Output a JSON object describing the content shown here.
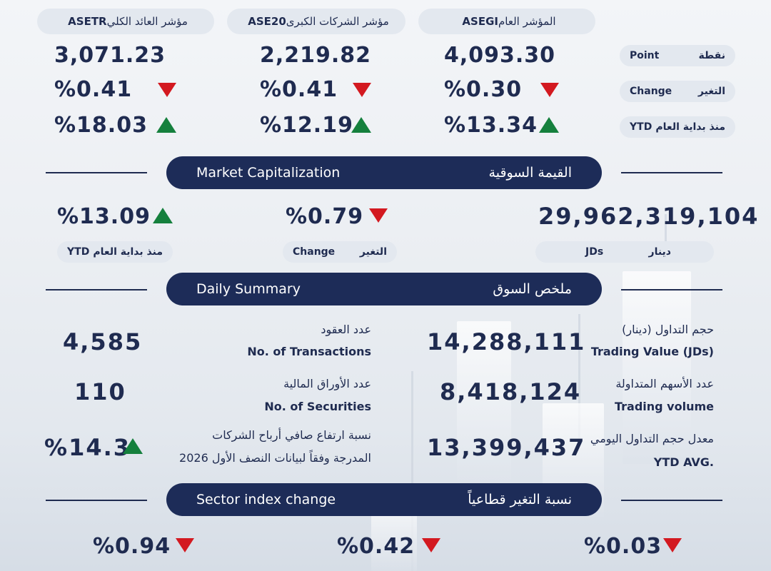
{
  "indices": [
    {
      "name_ar": "المؤشر العام",
      "code": "ASEGI",
      "point": "4,093.30",
      "change": "%0.30",
      "ytd": "%13.34"
    },
    {
      "name_ar": "مؤشر الشركات الكبرى",
      "code": "ASE20",
      "point": "2,219.82",
      "change": "%0.41",
      "ytd": "%12.19"
    },
    {
      "name_ar": "مؤشر العائد الكلي",
      "code": "ASETR",
      "point": "3,071.23",
      "change": "%0.41",
      "ytd": "%18.03"
    }
  ],
  "row_labels": [
    {
      "en": "Point",
      "ar": "نقطة"
    },
    {
      "en": "Change",
      "ar": "التغير"
    },
    {
      "en": "YTD",
      "ar": "منذ بداية العام"
    }
  ],
  "market_cap": {
    "title_en": "Market Capitalization",
    "title_ar": "القيمة السوقية",
    "value": "29,962,319,104",
    "value_label_en": "JDs",
    "value_label_ar": "دينار",
    "change": "%0.79",
    "change_label_en": "Change",
    "change_label_ar": "التغير",
    "ytd": "%13.09",
    "ytd_label_en": "YTD",
    "ytd_label_ar": "منذ بداية العام"
  },
  "daily_summary": {
    "title_en": "Daily Summary",
    "title_ar": "ملخص السوق",
    "trading_value": {
      "ar": "حجم التداول (دينار)",
      "en": "Trading Value (JDs)",
      "value": "14,288,111"
    },
    "trading_volume": {
      "ar": "عدد الأسهم المتداولة",
      "en": "Trading volume",
      "value": "8,418,124"
    },
    "ytd_avg": {
      "ar": "معدل حجم التداول اليومي",
      "en": "YTD AVG.",
      "value": "13,399,437"
    },
    "transactions": {
      "ar": "عدد العقود",
      "en": "No. of Transactions",
      "value": "4,585"
    },
    "securities": {
      "ar": "عدد الأوراق المالية",
      "en": "No. of Securities",
      "value": "110"
    },
    "profit_growth": {
      "ar_line1": "نسبة ارتفاع صافي  أرباح الشركات",
      "ar_line2": "المدرجة وفقاً لبيانات النصف الأول 2026",
      "value": "%14.3"
    }
  },
  "sector": {
    "title_en": "Sector index change",
    "title_ar": "نسبة التغير قطاعياً",
    "values": [
      "%0.03",
      "%0.42",
      "%0.94"
    ]
  },
  "colors": {
    "navy": "#1d2c58",
    "down": "#d31920",
    "up": "#15803d",
    "pill": "#e3e8ef"
  }
}
